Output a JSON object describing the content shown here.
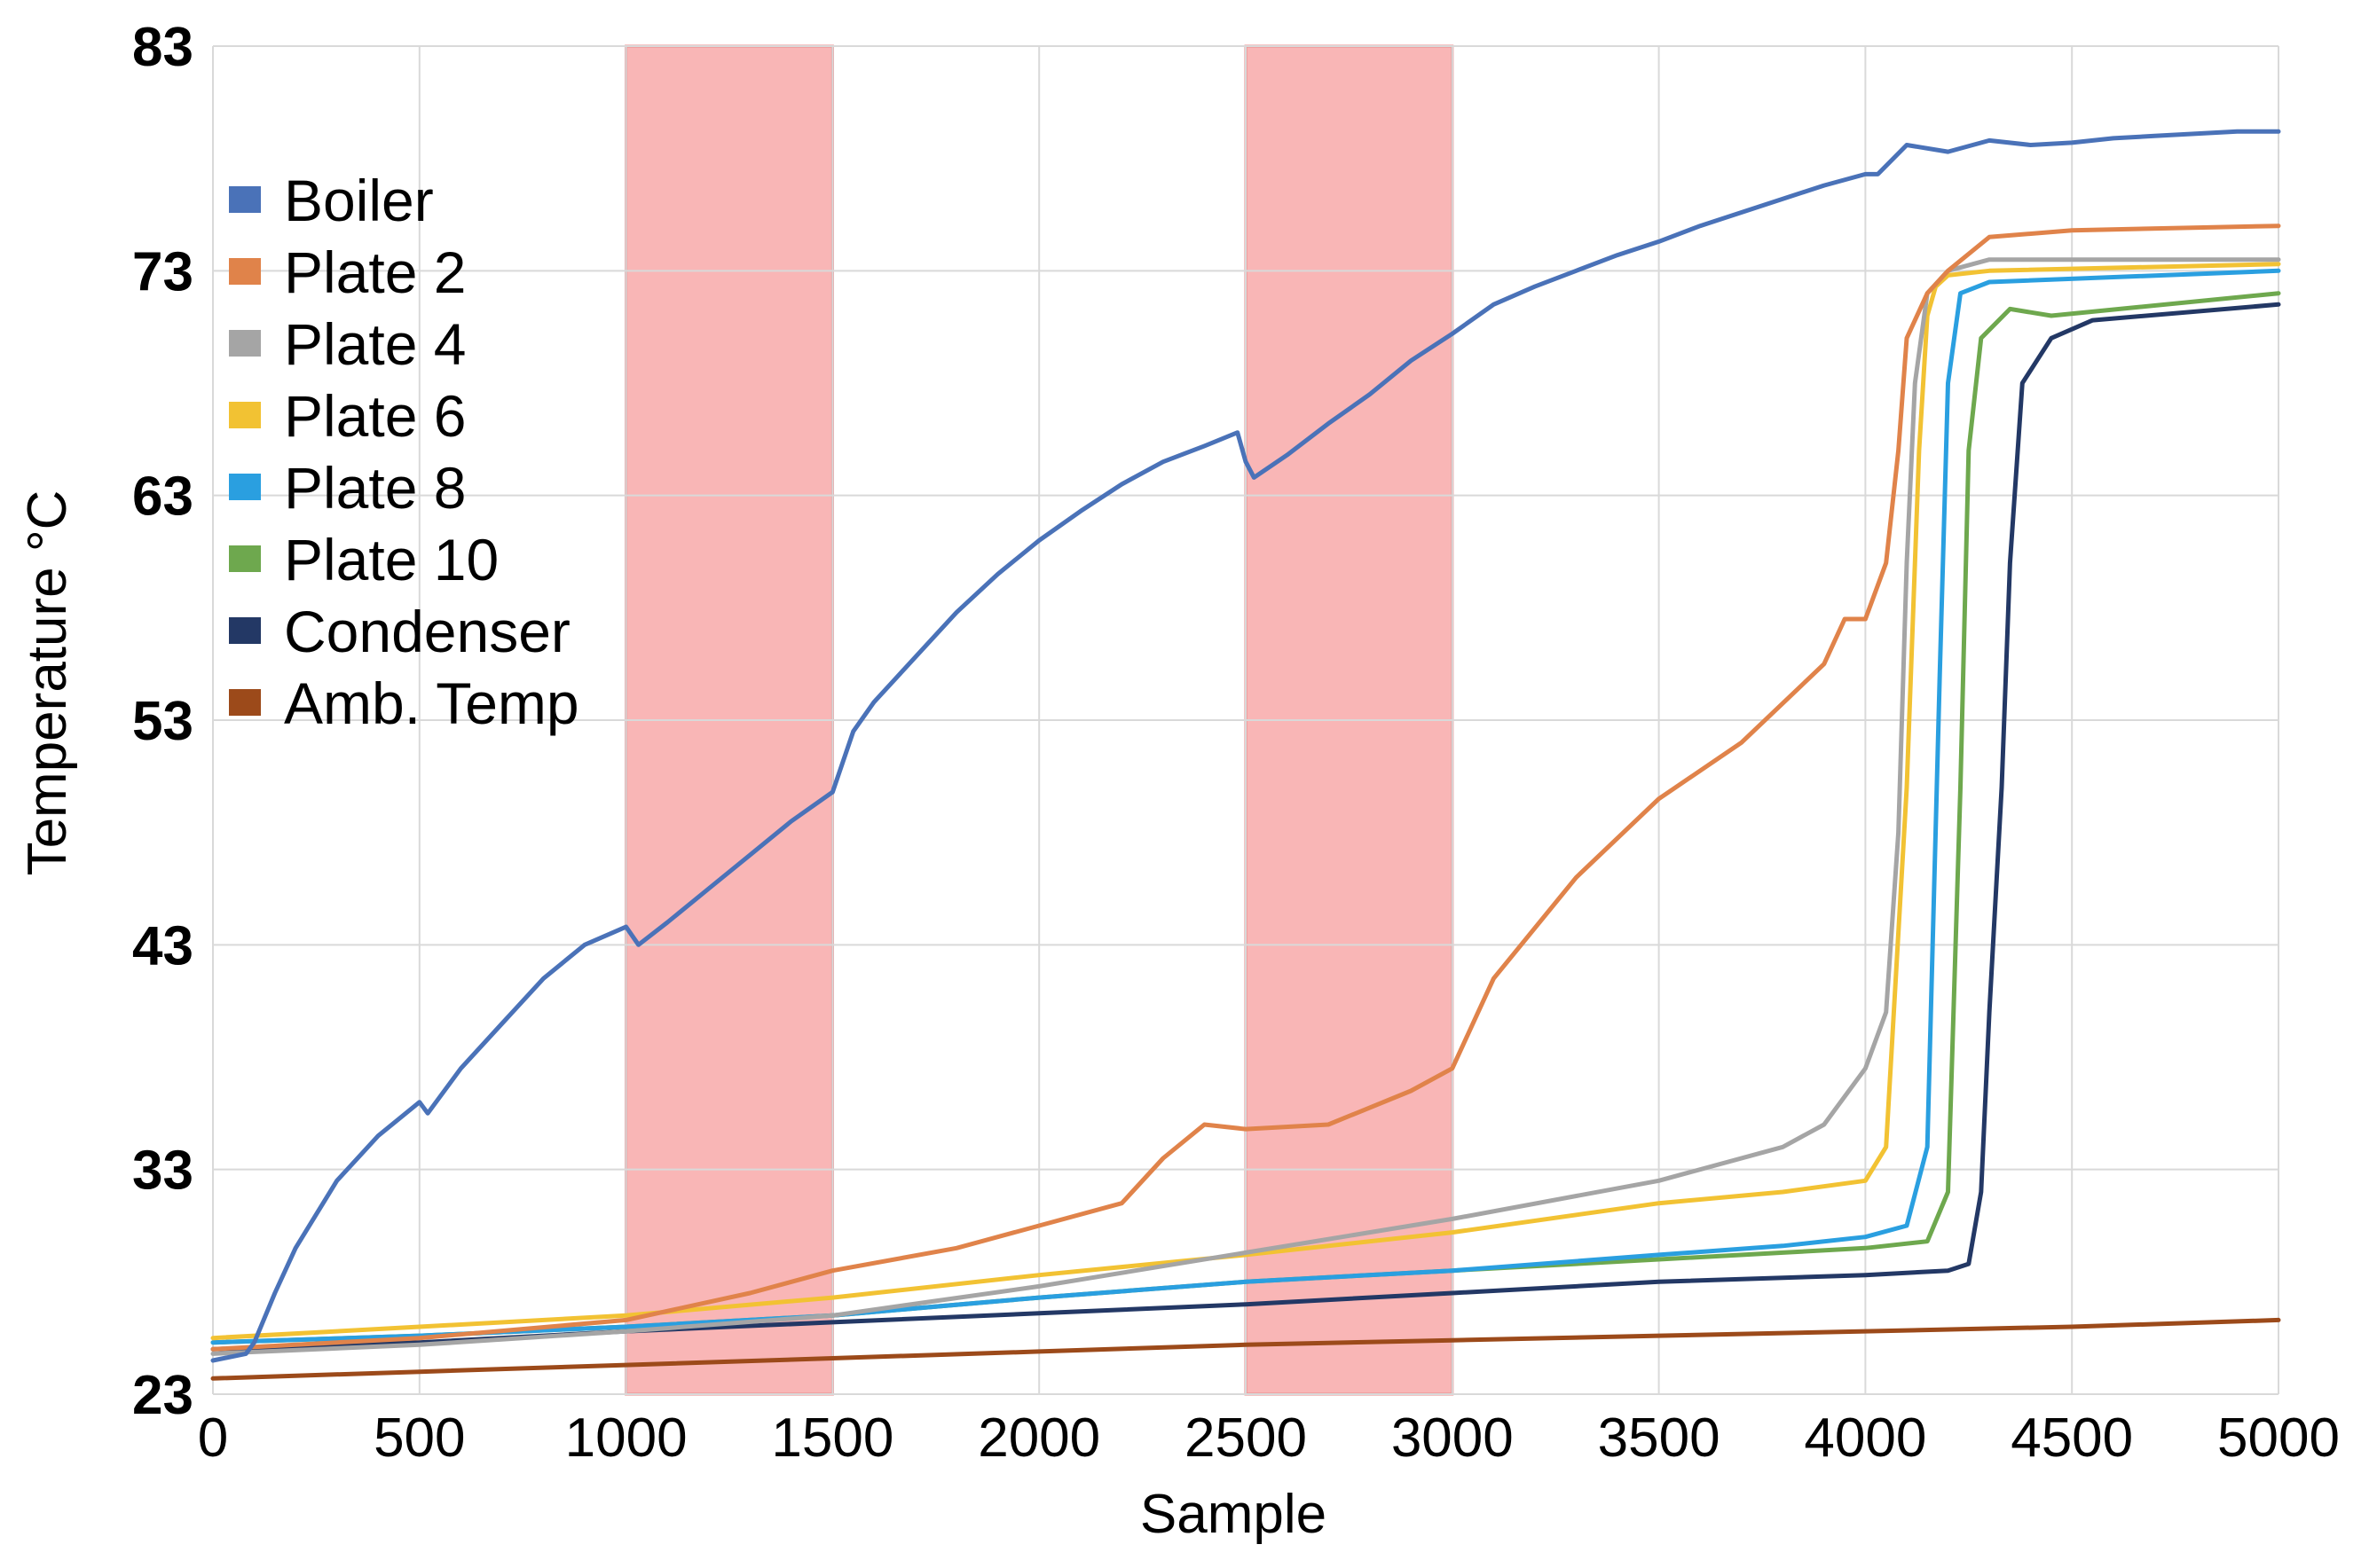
{
  "chart_data": {
    "type": "line",
    "title": "",
    "xlabel": "Sample",
    "ylabel": "Temperature °C",
    "xlim": [
      0,
      5000
    ],
    "ylim": [
      23,
      83
    ],
    "x_ticks": [
      0,
      500,
      1000,
      1500,
      2000,
      2500,
      3000,
      3500,
      4000,
      4500,
      5000
    ],
    "y_ticks": [
      23,
      33,
      43,
      53,
      63,
      73,
      83
    ],
    "grid": true,
    "legend_position": "top-left",
    "shaded_regions": [
      {
        "x_start": 1000,
        "x_end": 1500,
        "color": "#f8a9a9"
      },
      {
        "x_start": 2500,
        "x_end": 3000,
        "color": "#f8a9a9"
      }
    ],
    "series": [
      {
        "name": "Boiler",
        "color": "#4a72b8",
        "x": [
          0,
          80,
          100,
          150,
          200,
          300,
          400,
          500,
          520,
          600,
          700,
          800,
          900,
          1000,
          1030,
          1100,
          1200,
          1300,
          1400,
          1500,
          1550,
          1600,
          1700,
          1800,
          1900,
          2000,
          2100,
          2200,
          2300,
          2400,
          2480,
          2500,
          2520,
          2600,
          2700,
          2800,
          2900,
          3000,
          3100,
          3200,
          3300,
          3400,
          3500,
          3600,
          3700,
          3800,
          3900,
          4000,
          4030,
          4100,
          4200,
          4300,
          4400,
          4500,
          4600,
          4700,
          4800,
          4900,
          5000
        ],
        "values": [
          24.5,
          24.8,
          25.3,
          27.5,
          29.5,
          32.5,
          34.5,
          36.0,
          35.5,
          37.5,
          39.5,
          41.5,
          43.0,
          43.8,
          43.0,
          44.0,
          45.5,
          47.0,
          48.5,
          49.8,
          52.5,
          53.8,
          55.8,
          57.8,
          59.5,
          61.0,
          62.3,
          63.5,
          64.5,
          65.2,
          65.8,
          64.5,
          63.8,
          64.8,
          66.2,
          67.5,
          69.0,
          70.2,
          71.5,
          72.3,
          73.0,
          73.7,
          74.3,
          75.0,
          75.6,
          76.2,
          76.8,
          77.3,
          77.3,
          78.6,
          78.3,
          78.8,
          78.6,
          78.7,
          78.9,
          79.0,
          79.1,
          79.2,
          79.2
        ]
      },
      {
        "name": "Plate 2",
        "color": "#e0834a",
        "x": [
          0,
          500,
          1000,
          1300,
          1500,
          1800,
          2000,
          2200,
          2300,
          2400,
          2500,
          2700,
          2900,
          3000,
          3100,
          3300,
          3500,
          3700,
          3900,
          3950,
          4000,
          4050,
          4080,
          4100,
          4150,
          4200,
          4300,
          4500,
          5000
        ],
        "values": [
          25.0,
          25.5,
          26.3,
          27.5,
          28.5,
          29.5,
          30.5,
          31.5,
          33.5,
          35.0,
          34.8,
          35.0,
          36.5,
          37.5,
          41.5,
          46.0,
          49.5,
          52.0,
          55.5,
          57.5,
          57.5,
          60.0,
          65.0,
          70.0,
          72.0,
          73.0,
          74.5,
          74.8,
          75.0
        ]
      },
      {
        "name": "Plate 4",
        "color": "#a5a5a5",
        "x": [
          0,
          500,
          1000,
          1500,
          2000,
          2500,
          3000,
          3500,
          3800,
          3900,
          4000,
          4050,
          4080,
          4100,
          4120,
          4150,
          4200,
          4300,
          5000
        ],
        "values": [
          24.8,
          25.2,
          25.8,
          26.5,
          27.8,
          29.3,
          30.8,
          32.5,
          34.0,
          35.0,
          37.5,
          40.0,
          48.0,
          60.0,
          68.0,
          72.0,
          73.0,
          73.5,
          73.5
        ]
      },
      {
        "name": "Plate 6",
        "color": "#f2c233",
        "x": [
          0,
          500,
          1000,
          1500,
          2000,
          2500,
          3000,
          3500,
          3800,
          4000,
          4050,
          4100,
          4130,
          4150,
          4170,
          4200,
          4300,
          5000
        ],
        "values": [
          25.5,
          26.0,
          26.5,
          27.3,
          28.3,
          29.2,
          30.2,
          31.5,
          32.0,
          32.5,
          34.0,
          50.0,
          65.0,
          71.0,
          72.3,
          72.8,
          73.0,
          73.3
        ]
      },
      {
        "name": "Plate 8",
        "color": "#2a9fe0",
        "x": [
          0,
          500,
          1000,
          1500,
          2000,
          2500,
          3000,
          3500,
          3800,
          4000,
          4100,
          4150,
          4180,
          4200,
          4230,
          4300,
          5000
        ],
        "values": [
          25.3,
          25.6,
          26.0,
          26.5,
          27.3,
          28.0,
          28.5,
          29.2,
          29.6,
          30.0,
          30.5,
          34.0,
          55.0,
          68.0,
          72.0,
          72.5,
          73.0
        ]
      },
      {
        "name": "Plate 10",
        "color": "#6ea84e",
        "x": [
          0,
          500,
          1000,
          1500,
          2000,
          2500,
          3000,
          3500,
          3800,
          4000,
          4150,
          4200,
          4230,
          4250,
          4280,
          4350,
          4450,
          5000
        ],
        "values": [
          25.3,
          25.6,
          26.0,
          26.5,
          27.3,
          28.0,
          28.5,
          29.0,
          29.3,
          29.5,
          29.8,
          32.0,
          50.0,
          65.0,
          70.0,
          71.3,
          71.0,
          72.0
        ]
      },
      {
        "name": "Condenser",
        "color": "#233865",
        "x": [
          0,
          500,
          1000,
          1500,
          2000,
          2500,
          3000,
          3500,
          4000,
          4200,
          4250,
          4280,
          4300,
          4330,
          4350,
          4380,
          4450,
          4550,
          5000
        ],
        "values": [
          25.0,
          25.3,
          25.8,
          26.2,
          26.6,
          27.0,
          27.5,
          28.0,
          28.3,
          28.5,
          28.8,
          32.0,
          40.0,
          50.0,
          60.0,
          68.0,
          70.0,
          70.8,
          71.5
        ]
      },
      {
        "name": "Amb. Temp",
        "color": "#9c4a1a",
        "x": [
          0,
          500,
          1000,
          1500,
          2000,
          2500,
          3000,
          3500,
          4000,
          4500,
          5000
        ],
        "values": [
          23.7,
          24.0,
          24.3,
          24.6,
          24.9,
          25.2,
          25.4,
          25.6,
          25.8,
          26.0,
          26.3
        ]
      }
    ]
  }
}
